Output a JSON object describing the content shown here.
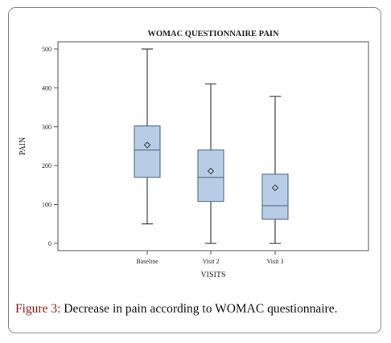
{
  "caption": {
    "label": "Figure 3:",
    "text": " Decrease in pain according to WOMAC questionnaire."
  },
  "chart_data": {
    "type": "box",
    "title": "WOMAC QUESTIONNAIRE PAIN",
    "xlabel": "VISITS",
    "ylabel": "PAIN",
    "ylim": [
      0,
      500
    ],
    "yticks": [
      0,
      100,
      200,
      300,
      400,
      500
    ],
    "grid": false,
    "legend": "none",
    "categories": [
      "Baseline",
      "Visit 2",
      "Visit 3"
    ],
    "boxes": [
      {
        "category": "Baseline",
        "min": 50,
        "q1": 170,
        "median": 240,
        "q3": 302,
        "max": 500,
        "mean": 253
      },
      {
        "category": "Visit 2",
        "min": 0,
        "q1": 108,
        "median": 170,
        "q3": 240,
        "max": 410,
        "mean": 186
      },
      {
        "category": "Visit 3",
        "min": 0,
        "q1": 62,
        "median": 97,
        "q3": 178,
        "max": 378,
        "mean": 143
      }
    ],
    "colors": {
      "box_fill": "#b7cde6",
      "box_stroke": "#4a5e7a",
      "line": "#222222"
    }
  }
}
